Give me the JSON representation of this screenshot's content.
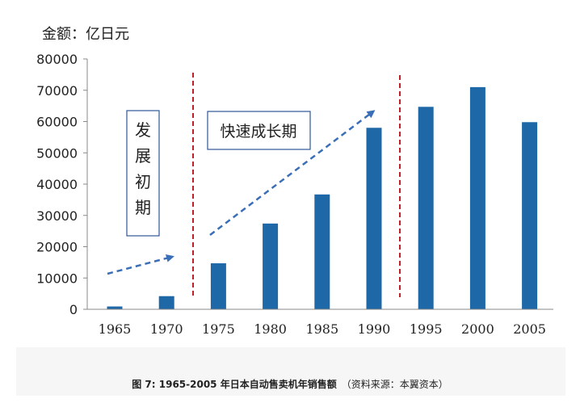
{
  "chart_data": {
    "type": "bar",
    "title": "1965-2005 年日本自动售卖机年销售额",
    "unit_label": "金额：亿日元",
    "categories": [
      "1965",
      "1970",
      "1975",
      "1980",
      "1985",
      "1990",
      "1995",
      "2000",
      "2005"
    ],
    "values": [
      900,
      4200,
      14700,
      27400,
      36700,
      58000,
      64700,
      71000,
      59800
    ],
    "ylim": [
      0,
      80000
    ],
    "yticks": [
      "0",
      "10000",
      "20000",
      "30000",
      "40000",
      "50000",
      "60000",
      "70000",
      "80000"
    ],
    "bar_color": "#1f68a8",
    "annotations": {
      "phase1": "发展初期",
      "phase2": "快速成长期"
    }
  },
  "caption": {
    "figure": "图 7: 1965-2005 年日本自动售卖机年销售额",
    "source": "（资料来源：本翼资本）"
  }
}
